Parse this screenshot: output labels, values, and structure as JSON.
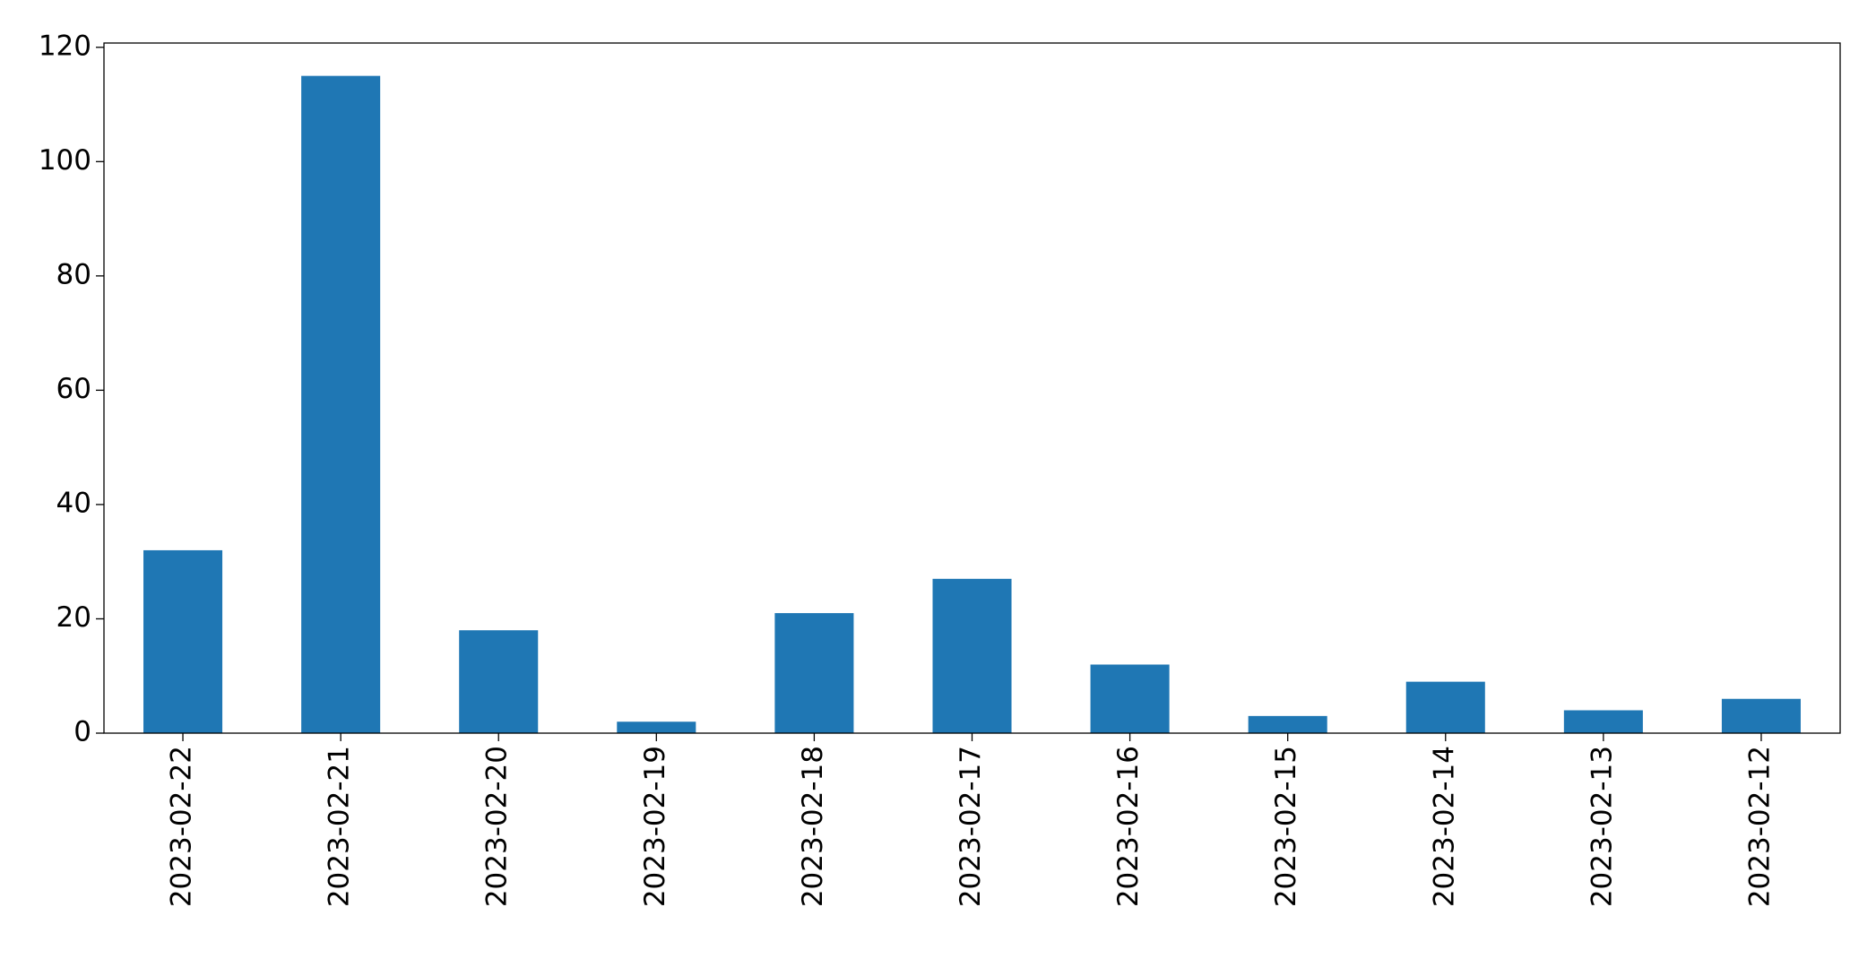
{
  "chart_data": {
    "type": "bar",
    "categories": [
      "2023-02-22",
      "2023-02-21",
      "2023-02-20",
      "2023-02-19",
      "2023-02-18",
      "2023-02-17",
      "2023-02-16",
      "2023-02-15",
      "2023-02-14",
      "2023-02-13",
      "2023-02-12"
    ],
    "values": [
      32,
      115,
      18,
      2,
      21,
      27,
      12,
      3,
      9,
      4,
      6
    ],
    "color": "#1f77b4",
    "ylim": [
      0,
      120.75
    ],
    "yticks": [
      0,
      20,
      40,
      60,
      80,
      100,
      120
    ],
    "grid": false
  }
}
